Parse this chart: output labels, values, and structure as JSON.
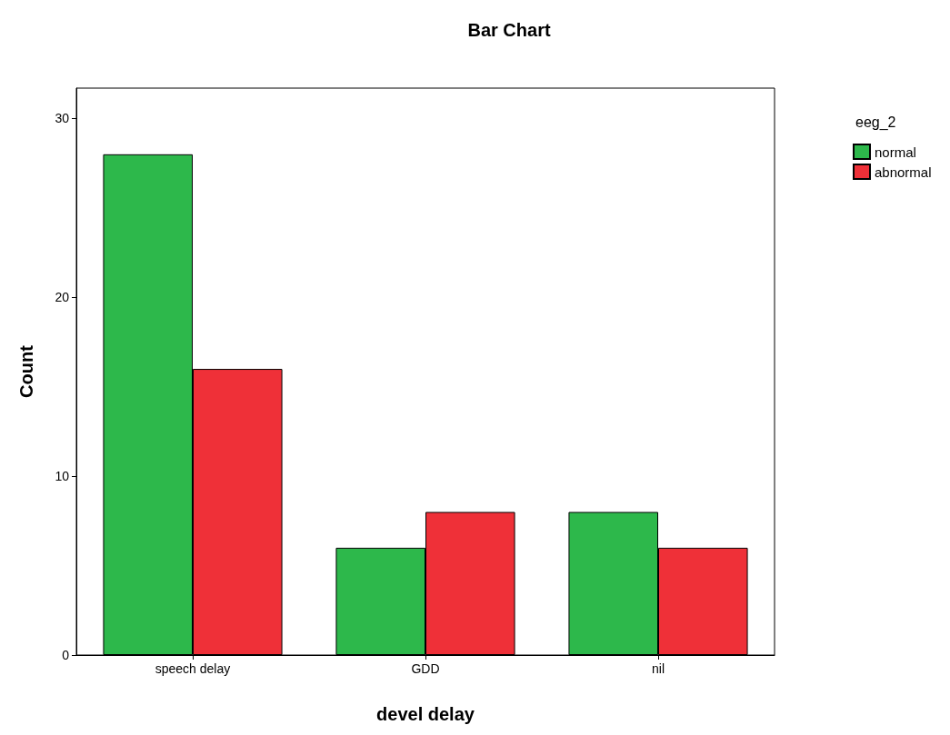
{
  "chart_data": {
    "type": "bar",
    "title": "Bar Chart",
    "xlabel": "devel delay",
    "ylabel": "Count",
    "legend_title": "eeg_2",
    "categories": [
      "speech delay",
      "GDD",
      "nil"
    ],
    "series": [
      {
        "name": "normal",
        "color": "#2db84b",
        "values": [
          28,
          6,
          8
        ]
      },
      {
        "name": "abnormal",
        "color": "#ef3038",
        "values": [
          16,
          8,
          6
        ]
      }
    ],
    "ylim": [
      0,
      31.7
    ],
    "yticks": [
      0,
      10,
      20,
      30
    ],
    "grid": false,
    "legend": "top right"
  }
}
